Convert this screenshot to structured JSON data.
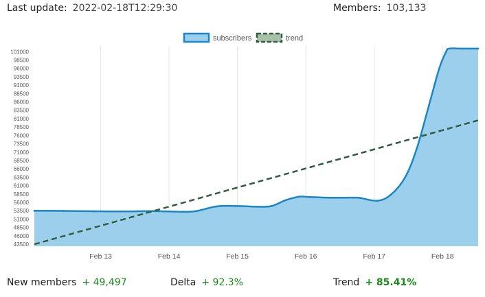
{
  "header": {
    "last_update_label": "Last update:",
    "last_update_value": "2022-02-18T12:29:30",
    "members_label": "Members:",
    "members_value": "103,133"
  },
  "footer": {
    "new_members_label": "New members",
    "new_members_value": "+ 49,497",
    "delta_label": "Delta",
    "delta_value": "+ 92.3%",
    "trend_label": "Trend",
    "trend_value": "+ 85.41%"
  },
  "chart_data": {
    "type": "area",
    "legend": [
      "subscribers",
      "trend"
    ],
    "legend_position": "top-center",
    "grid": "vertical",
    "colors": {
      "subscribers_fill": "#9ccfeb",
      "subscribers_line": "#1a86c8",
      "trend": "#2e5e3e",
      "trend_fill": "#a8bfa8"
    },
    "x_ticks": [
      {
        "label": "Feb 13",
        "x": 13
      },
      {
        "label": "Feb 14",
        "x": 14
      },
      {
        "label": "Feb 15",
        "x": 15
      },
      {
        "label": "Feb 16",
        "x": 16
      },
      {
        "label": "Feb 17",
        "x": 17
      },
      {
        "label": "Feb 18",
        "x": 18
      }
    ],
    "xlim": [
      12.03,
      18.52
    ],
    "y_ticks": [
      43500,
      46000,
      48500,
      51000,
      53500,
      56000,
      58500,
      61000,
      63500,
      66000,
      68500,
      71000,
      73500,
      76000,
      78500,
      81000,
      83500,
      86000,
      88500,
      91000,
      93500,
      96000,
      98500,
      101000
    ],
    "ylim": [
      43000,
      102800
    ],
    "series": [
      {
        "name": "subscribers",
        "points": [
          [
            12.03,
            53600
          ],
          [
            12.45,
            53550
          ],
          [
            12.9,
            53450
          ],
          [
            13.35,
            53400
          ],
          [
            13.75,
            53500
          ],
          [
            14.2,
            53300
          ],
          [
            14.4,
            53500
          ],
          [
            14.7,
            54900
          ],
          [
            15.0,
            55000
          ],
          [
            15.3,
            54800
          ],
          [
            15.5,
            55000
          ],
          [
            15.7,
            56700
          ],
          [
            15.9,
            57800
          ],
          [
            16.05,
            57700
          ],
          [
            16.35,
            57500
          ],
          [
            16.7,
            57500
          ],
          [
            16.8,
            57400
          ],
          [
            17.05,
            56600
          ],
          [
            17.25,
            58500
          ],
          [
            17.45,
            63500
          ],
          [
            17.62,
            72000
          ],
          [
            17.8,
            85000
          ],
          [
            17.95,
            96000
          ],
          [
            18.05,
            101000
          ],
          [
            18.1,
            102000
          ],
          [
            18.3,
            102000
          ],
          [
            18.52,
            102000
          ]
        ]
      },
      {
        "name": "trend",
        "points": [
          [
            12.03,
            43600
          ],
          [
            18.52,
            80600
          ]
        ]
      }
    ]
  }
}
